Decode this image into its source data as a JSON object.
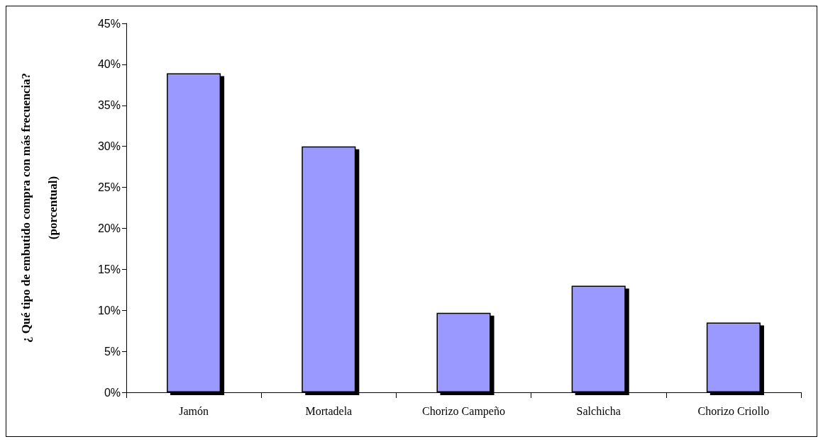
{
  "chart_data": {
    "type": "bar",
    "ylabel": "¿ Qué tipo de embutido compra con más frecuencia?\n(porcentual)",
    "categories": [
      "Jamón",
      "Mortadela",
      "Chorizo Campeño",
      "Salchicha",
      "Chorizo Criollo"
    ],
    "values": [
      38.9,
      30.0,
      9.7,
      13.0,
      8.5
    ],
    "color": "#9999ff",
    "ylim": [
      0,
      45
    ],
    "yticks": [
      {
        "value": 0,
        "label": "0%"
      },
      {
        "value": 5,
        "label": "5%"
      },
      {
        "value": 10,
        "label": "10%"
      },
      {
        "value": 15,
        "label": "15%"
      },
      {
        "value": 20,
        "label": "20%"
      },
      {
        "value": 25,
        "label": "25%"
      },
      {
        "value": 30,
        "label": "30%"
      },
      {
        "value": 35,
        "label": "35%"
      },
      {
        "value": 40,
        "label": "40%"
      },
      {
        "value": 45,
        "label": "45%"
      }
    ],
    "grid": false
  }
}
